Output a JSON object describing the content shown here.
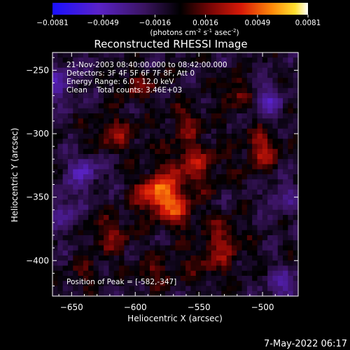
{
  "colorbar": {
    "ticks": [
      "-0.0081",
      "-0.0049",
      "-0.0016",
      "0.0016",
      "0.0049",
      "0.0081"
    ],
    "min": -0.0081,
    "max": 0.0081,
    "unit_prefix": "(photons cm",
    "unit_sup1": "-2",
    "unit_mid1": " s",
    "unit_sup2": "-1",
    "unit_mid2": " asec",
    "unit_sup3": "-2",
    "unit_suffix": ")"
  },
  "chart_data": {
    "type": "heatmap",
    "title": "Reconstructed RHESSI Image",
    "xlabel": "Heliocentric X (arcsec)",
    "ylabel": "Heliocentric Y (arcsec)",
    "xlim": [
      -665,
      -472
    ],
    "ylim": [
      -428,
      -236
    ],
    "xticks": [
      -650,
      -600,
      -550,
      -500
    ],
    "yticks": [
      -250,
      -300,
      -350,
      -400
    ],
    "xtick_labels": [
      "-650",
      "-600",
      "-550",
      "-500"
    ],
    "ytick_labels": [
      "-250",
      "-300",
      "-350",
      "-400"
    ],
    "annotation_lines": [
      "21-Nov-2003 08:40:00.000 to 08:42:00.000",
      "Detectors: 3F 4F 5F 6F 7F 8F, Att 0",
      "Energy Range: 6.0 - 12.0 keV",
      "Clean    Total counts: 3.46E+03"
    ],
    "peak_label": "Position of Peak = [-582,-347]",
    "peak_position": [
      -582,
      -347
    ],
    "colormap": "diverging blue-purple-black-red-orange-yellow-white",
    "sources": [
      {
        "x": -582,
        "y": -347,
        "sx": 12,
        "sy": 10,
        "amp": 0.006
      },
      {
        "x": -568,
        "y": -362,
        "sx": 10,
        "sy": 9,
        "amp": 0.0035
      },
      {
        "x": -555,
        "y": -325,
        "sx": 16,
        "sy": 14,
        "amp": 0.0032
      },
      {
        "x": -500,
        "y": -312,
        "sx": 9,
        "sy": 12,
        "amp": 0.0035
      },
      {
        "x": -522,
        "y": -268,
        "sx": 8,
        "sy": 9,
        "amp": 0.0028
      },
      {
        "x": -615,
        "y": -300,
        "sx": 14,
        "sy": 10,
        "amp": 0.0026
      },
      {
        "x": -598,
        "y": -262,
        "sx": 14,
        "sy": 8,
        "amp": 0.0022
      },
      {
        "x": -620,
        "y": -380,
        "sx": 12,
        "sy": 10,
        "amp": 0.0026
      },
      {
        "x": -540,
        "y": -400,
        "sx": 16,
        "sy": 10,
        "amp": 0.0022
      },
      {
        "x": -530,
        "y": -380,
        "sx": 10,
        "sy": 10,
        "amp": 0.0026
      },
      {
        "x": -585,
        "y": -410,
        "sx": 12,
        "sy": 8,
        "amp": 0.002
      },
      {
        "x": -560,
        "y": -290,
        "sx": 10,
        "sy": 10,
        "amp": 0.002
      },
      {
        "x": -640,
        "y": -410,
        "sx": 8,
        "sy": 8,
        "amp": 0.0016
      },
      {
        "x": -495,
        "y": -275,
        "sx": 8,
        "sy": 10,
        "amp": -0.003
      },
      {
        "x": -660,
        "y": -260,
        "sx": 10,
        "sy": 12,
        "amp": -0.0026
      },
      {
        "x": -640,
        "y": -330,
        "sx": 10,
        "sy": 10,
        "amp": -0.0028
      },
      {
        "x": -480,
        "y": -420,
        "sx": 12,
        "sy": 10,
        "amp": -0.0025
      },
      {
        "x": -655,
        "y": -360,
        "sx": 8,
        "sy": 12,
        "amp": -0.0022
      },
      {
        "x": -485,
        "y": -350,
        "sx": 8,
        "sy": 10,
        "amp": -0.0022
      }
    ]
  },
  "footer": {
    "timestamp": "7-May-2022 06:17"
  }
}
